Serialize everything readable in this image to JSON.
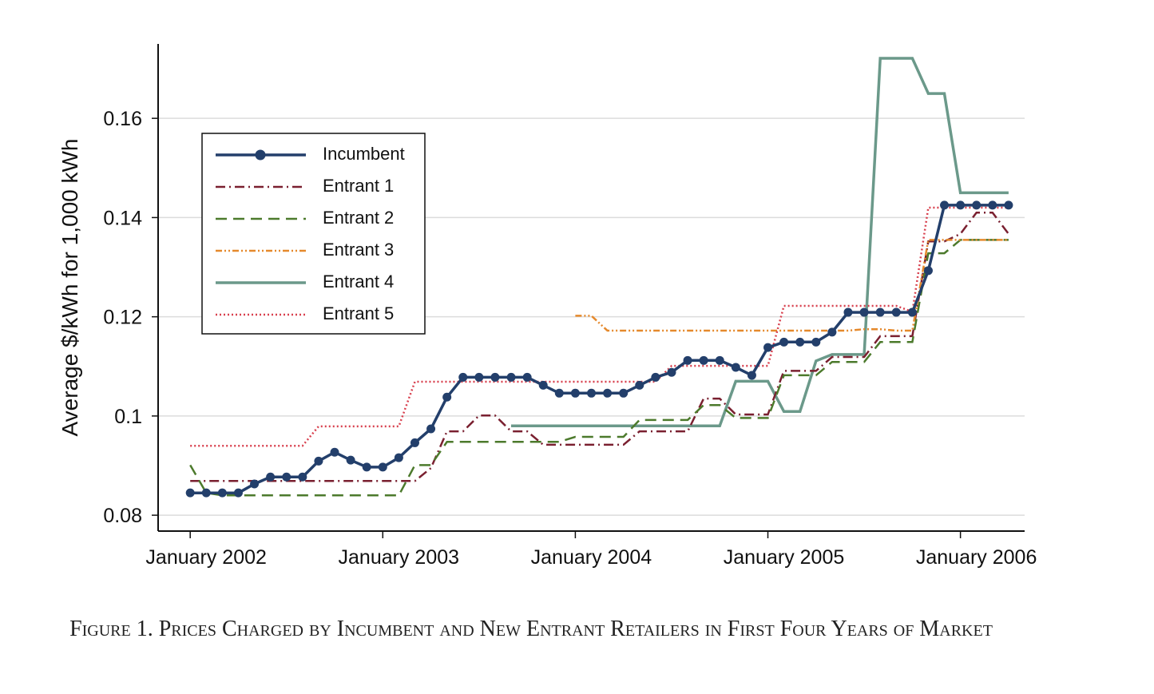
{
  "chart_data": {
    "type": "line",
    "title": "Figure 1. Prices Charged by Incumbent and New Entrant Retailers in First Four Years of Market",
    "y_label": "Average $/kWh for 1,000 kWh",
    "x": [
      "2002-01",
      "2002-02",
      "2002-03",
      "2002-04",
      "2002-05",
      "2002-06",
      "2002-07",
      "2002-08",
      "2002-09",
      "2002-10",
      "2002-11",
      "2002-12",
      "2003-01",
      "2003-02",
      "2003-03",
      "2003-04",
      "2003-05",
      "2003-06",
      "2003-07",
      "2003-08",
      "2003-09",
      "2003-10",
      "2003-11",
      "2003-12",
      "2004-01",
      "2004-02",
      "2004-03",
      "2004-04",
      "2004-05",
      "2004-06",
      "2004-07",
      "2004-08",
      "2004-09",
      "2004-10",
      "2004-11",
      "2004-12",
      "2005-01",
      "2005-02",
      "2005-03",
      "2005-04",
      "2005-05",
      "2005-06",
      "2005-07",
      "2005-08",
      "2005-09",
      "2005-10",
      "2005-11",
      "2005-12",
      "2006-01",
      "2006-02",
      "2006-03",
      "2006-04"
    ],
    "xlim": [
      "2001-11",
      "2006-05"
    ],
    "xticks": [
      {
        "value": "2002-01",
        "label": "January 2002"
      },
      {
        "value": "2003-01",
        "label": "January 2003"
      },
      {
        "value": "2004-01",
        "label": "January 2004"
      },
      {
        "value": "2005-01",
        "label": "January 2005"
      },
      {
        "value": "2006-01",
        "label": "January 2006"
      }
    ],
    "ylim": [
      0.0768,
      0.175
    ],
    "yticks": [
      0.08,
      0.1,
      0.12,
      0.14,
      0.16
    ],
    "grid": true,
    "legend": "upper left",
    "series": [
      {
        "name": "Incumbent",
        "color": "#233f6b",
        "style": "solid",
        "marker": true,
        "values": [
          0.0845,
          0.0845,
          0.0845,
          0.0845,
          0.0863,
          0.0877,
          0.0877,
          0.0877,
          0.0909,
          0.0927,
          0.0911,
          0.0897,
          0.0897,
          0.0916,
          0.0946,
          0.0974,
          0.1038,
          0.1078,
          0.1078,
          0.1078,
          0.1078,
          0.1078,
          0.1062,
          0.1046,
          0.1046,
          0.1046,
          0.1046,
          0.1046,
          0.1062,
          0.1078,
          0.1088,
          0.1112,
          0.1112,
          0.1112,
          0.1098,
          0.1082,
          0.1138,
          0.1149,
          0.1149,
          0.1149,
          0.1169,
          0.1209,
          0.1209,
          0.1209,
          0.1209,
          0.1209,
          0.1293,
          0.1425,
          0.1425,
          0.1425,
          0.1425,
          0.1425
        ]
      },
      {
        "name": "Entrant 1",
        "color": "#7a2030",
        "style": "dash-dot",
        "values": [
          0.0869,
          0.0869,
          0.0869,
          0.0869,
          0.0869,
          0.0869,
          0.0869,
          0.0869,
          0.0869,
          0.0869,
          0.0869,
          0.0869,
          0.0869,
          0.0869,
          0.0869,
          0.0895,
          0.0969,
          0.0969,
          0.1001,
          0.1001,
          0.0969,
          0.0969,
          0.0942,
          0.0942,
          0.0942,
          0.0942,
          0.0942,
          0.0942,
          0.0969,
          0.0969,
          0.0969,
          0.0969,
          0.1035,
          0.1035,
          0.1003,
          0.1003,
          0.1003,
          0.1091,
          0.1091,
          0.1091,
          0.1119,
          0.1119,
          0.1119,
          0.1161,
          0.1161,
          0.1161,
          0.1352,
          0.1352,
          0.1367,
          0.141,
          0.141,
          0.1367
        ]
      },
      {
        "name": "Entrant 2",
        "color": "#4c7a2c",
        "style": "dashed",
        "values": [
          0.0901,
          0.0845,
          0.084,
          0.084,
          0.084,
          0.084,
          0.084,
          0.084,
          0.084,
          0.084,
          0.084,
          0.084,
          0.084,
          0.084,
          0.0901,
          0.0901,
          0.0948,
          0.0948,
          0.0948,
          0.0948,
          0.0948,
          0.0948,
          0.0948,
          0.0948,
          0.0958,
          0.0958,
          0.0958,
          0.0958,
          0.0992,
          0.0992,
          0.0992,
          0.0992,
          0.1022,
          0.1022,
          0.0996,
          0.0996,
          0.0996,
          0.1082,
          0.1082,
          0.1082,
          0.1109,
          0.1109,
          0.1109,
          0.1149,
          0.1149,
          0.1149,
          0.1328,
          0.1328,
          0.1355,
          0.1355,
          0.1355,
          0.1355
        ]
      },
      {
        "name": "Entrant 3",
        "color": "#e5892c",
        "style": "dash-dot-dot",
        "values": [
          null,
          null,
          null,
          null,
          null,
          null,
          null,
          null,
          null,
          null,
          null,
          null,
          null,
          null,
          null,
          null,
          null,
          null,
          null,
          null,
          null,
          null,
          null,
          null,
          0.1202,
          0.1202,
          0.1172,
          0.1172,
          0.1172,
          0.1172,
          0.1172,
          0.1172,
          0.1172,
          0.1172,
          0.1172,
          0.1172,
          0.1172,
          0.1172,
          0.1172,
          0.1172,
          0.1172,
          0.1172,
          0.1175,
          0.1175,
          0.1172,
          0.1172,
          0.1355,
          0.1355,
          0.1355,
          0.1355,
          0.1355,
          0.1355
        ]
      },
      {
        "name": "Entrant 4",
        "color": "#6b998a",
        "style": "solid",
        "values": [
          null,
          null,
          null,
          null,
          null,
          null,
          null,
          null,
          null,
          null,
          null,
          null,
          null,
          null,
          null,
          null,
          null,
          null,
          null,
          null,
          0.098,
          0.098,
          0.098,
          0.098,
          0.098,
          0.098,
          0.098,
          0.098,
          0.098,
          0.098,
          0.098,
          0.098,
          0.098,
          0.098,
          0.107,
          0.107,
          0.107,
          0.1009,
          0.1009,
          0.1111,
          0.1124,
          0.1124,
          0.1124,
          0.1721,
          0.1721,
          0.1721,
          0.165,
          0.165,
          0.145,
          0.145,
          0.145,
          0.145
        ]
      },
      {
        "name": "Entrant 5",
        "color": "#d8404e",
        "style": "dotted",
        "values": [
          0.094,
          0.094,
          0.094,
          0.094,
          0.094,
          0.094,
          0.094,
          0.094,
          0.0979,
          0.0979,
          0.0979,
          0.0979,
          0.0979,
          0.0979,
          0.1069,
          0.1069,
          0.1069,
          0.1069,
          0.1069,
          0.1069,
          0.1069,
          0.1069,
          0.1069,
          0.1069,
          0.1069,
          0.1069,
          0.1069,
          0.1069,
          0.1069,
          0.1069,
          0.1101,
          0.1101,
          0.1101,
          0.1101,
          0.1101,
          0.1101,
          0.1101,
          0.1222,
          0.1222,
          0.1222,
          0.1222,
          0.1222,
          0.1222,
          0.1222,
          0.1222,
          0.121,
          0.142,
          0.142,
          0.142,
          0.142,
          0.142,
          0.142
        ]
      }
    ]
  }
}
